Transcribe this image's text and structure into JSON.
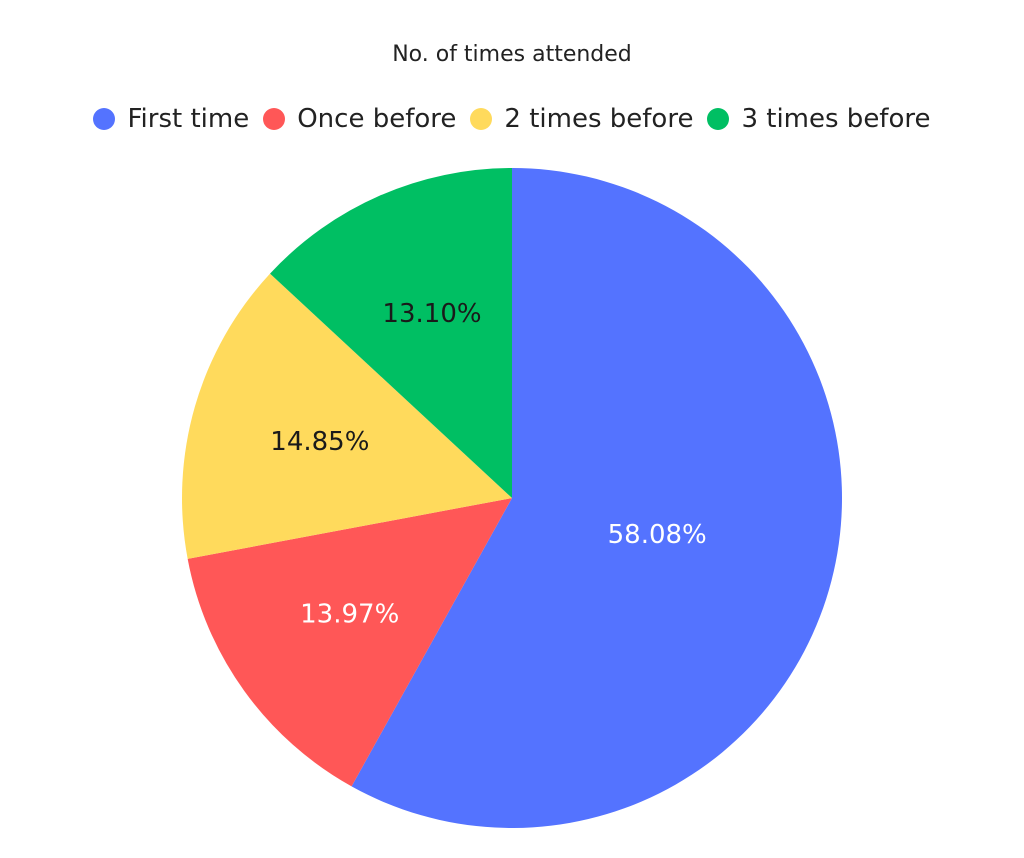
{
  "chart_data": {
    "type": "pie",
    "title": "No. of times attended",
    "categories": [
      "First time",
      "Once before",
      "2 times before",
      "3 times before"
    ],
    "values": [
      58.08,
      13.97,
      14.85,
      13.1
    ],
    "labels": [
      "58.08%",
      "13.97%",
      "14.85%",
      "13.10%"
    ],
    "colors": [
      "#5473FF",
      "#FF5757",
      "#FFDA5C",
      "#00BF63"
    ],
    "label_colors": [
      "#FFFFFF",
      "#FFFFFF",
      "#1A1A1A",
      "#1A1A1A"
    ],
    "start": "12 o'clock",
    "direction": "clockwise",
    "legend_position": "top"
  }
}
